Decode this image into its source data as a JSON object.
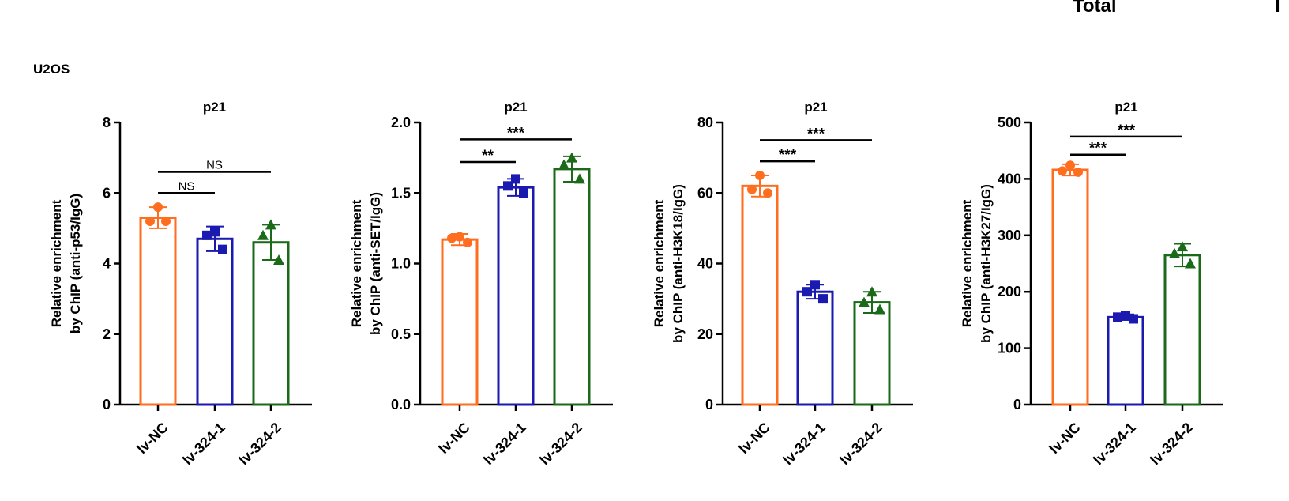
{
  "figure": {
    "panel_label": "U2OS",
    "top_fragment": "Total",
    "top_fragment_2": "I"
  },
  "colors": {
    "lv-NC": "#ff6e1f",
    "lv-324-1": "#1a1ab0",
    "lv-324-2": "#1a6a1a",
    "axis": "#000000"
  },
  "chart_data": [
    {
      "type": "bar",
      "title": "p21",
      "ylabel_lines": [
        "Relative enrichment",
        "by ChIP (anti-p53/IgG)"
      ],
      "categories": [
        "lv-NC",
        "lv-324-1",
        "lv-324-2"
      ],
      "values": [
        5.3,
        4.7,
        4.6
      ],
      "errors": [
        0.3,
        0.35,
        0.5
      ],
      "points": [
        [
          5.6,
          5.2,
          5.2
        ],
        [
          4.9,
          4.8,
          4.4
        ],
        [
          5.1,
          4.8,
          4.1
        ]
      ],
      "markers": [
        "circle",
        "square",
        "triangle"
      ],
      "ylim": [
        0,
        8
      ],
      "yticks": [
        0,
        2,
        4,
        6,
        8
      ],
      "tick_labels": [
        "0",
        "2",
        "4",
        "6",
        "8"
      ],
      "significance": [
        {
          "from": 0,
          "to": 1,
          "label": "NS",
          "y": 6.0
        },
        {
          "from": 0,
          "to": 2,
          "label": "NS",
          "y": 6.6
        }
      ]
    },
    {
      "type": "bar",
      "title": "p21",
      "ylabel_lines": [
        "Relative enrichment",
        "by ChIP (anti-SET/IgG)"
      ],
      "categories": [
        "lv-NC",
        "lv-324-1",
        "lv-324-2"
      ],
      "values": [
        1.17,
        1.54,
        1.67
      ],
      "errors": [
        0.04,
        0.06,
        0.09
      ],
      "points": [
        [
          1.19,
          1.18,
          1.15
        ],
        [
          1.6,
          1.55,
          1.5
        ],
        [
          1.75,
          1.7,
          1.6
        ]
      ],
      "markers": [
        "circle",
        "square",
        "triangle"
      ],
      "ylim": [
        0,
        2.0
      ],
      "yticks": [
        0,
        0.5,
        1.0,
        1.5,
        2.0
      ],
      "tick_labels": [
        "0.0",
        "0.5",
        "1.0",
        "1.5",
        "2.0"
      ],
      "significance": [
        {
          "from": 0,
          "to": 1,
          "label": "**",
          "y": 1.72
        },
        {
          "from": 0,
          "to": 2,
          "label": "***",
          "y": 1.88
        }
      ]
    },
    {
      "type": "bar",
      "title": "p21",
      "ylabel_lines": [
        "Relative enrichment",
        "by ChIP (anti-H3K18/IgG)"
      ],
      "categories": [
        "lv-NC",
        "lv-324-1",
        "lv-324-2"
      ],
      "values": [
        62,
        32,
        29
      ],
      "errors": [
        3,
        2,
        3
      ],
      "points": [
        [
          65,
          61,
          60
        ],
        [
          34,
          32,
          30
        ],
        [
          32,
          29,
          27
        ]
      ],
      "markers": [
        "circle",
        "square",
        "triangle"
      ],
      "ylim": [
        0,
        80
      ],
      "yticks": [
        0,
        20,
        40,
        60,
        80
      ],
      "tick_labels": [
        "0",
        "20",
        "40",
        "60",
        "80"
      ],
      "significance": [
        {
          "from": 0,
          "to": 1,
          "label": "***",
          "y": 69
        },
        {
          "from": 0,
          "to": 2,
          "label": "***",
          "y": 75
        }
      ]
    },
    {
      "type": "bar",
      "title": "p21",
      "ylabel_lines": [
        "Relative enrichment",
        "by ChIP (anti-H3K27/IgG)"
      ],
      "categories": [
        "lv-NC",
        "lv-324-1",
        "lv-324-2"
      ],
      "values": [
        416,
        155,
        265
      ],
      "errors": [
        10,
        5,
        20
      ],
      "points": [
        [
          424,
          414,
          412
        ],
        [
          157,
          155,
          152
        ],
        [
          280,
          268,
          250
        ]
      ],
      "markers": [
        "circle",
        "square",
        "triangle"
      ],
      "ylim": [
        0,
        500
      ],
      "yticks": [
        0,
        100,
        200,
        300,
        400,
        500
      ],
      "tick_labels": [
        "0",
        "100",
        "200",
        "300",
        "400",
        "500"
      ],
      "significance": [
        {
          "from": 0,
          "to": 1,
          "label": "***",
          "y": 443
        },
        {
          "from": 0,
          "to": 2,
          "label": "***",
          "y": 475
        }
      ]
    }
  ]
}
